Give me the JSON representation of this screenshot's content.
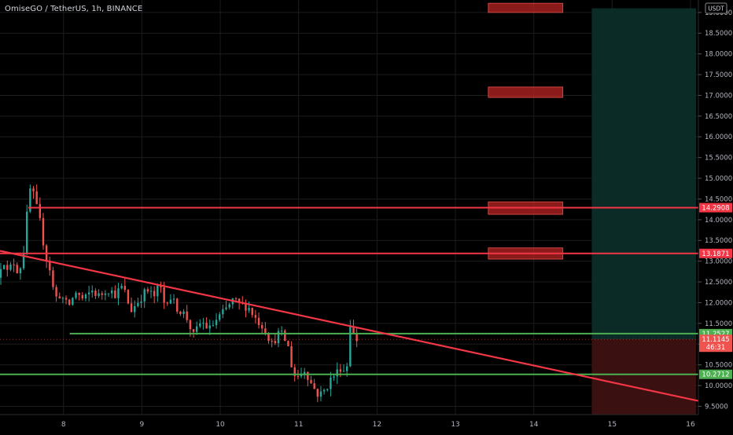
{
  "header": {
    "symbol_title": "OmiseGO / TetherUS, 1h, BINANCE"
  },
  "axis": {
    "currency_badge": "USDT"
  },
  "chart_data": {
    "type": "candlestick",
    "title": "OmiseGO / TetherUS, 1h, BINANCE",
    "x_unit": "day",
    "xlim": [
      7.19,
      16.1
    ],
    "ylim": [
      9.3,
      19.3
    ],
    "x_tick_labels": [
      "8",
      "9",
      "10",
      "11",
      "12",
      "13",
      "14",
      "15",
      "16"
    ],
    "x_ticks": [
      8,
      9,
      10,
      11,
      12,
      13,
      14,
      15,
      16
    ],
    "y_ticks": [
      9.5,
      10,
      10.5,
      11,
      11.5,
      12,
      12.5,
      13,
      13.5,
      14,
      14.5,
      15,
      15.5,
      16,
      16.5,
      17,
      17.5,
      18,
      18.5,
      19
    ],
    "y_tick_labels": [
      "9.5000",
      "10.0000",
      "10.5000",
      "11.0000",
      "11.5000",
      "12.0000",
      "12.5000",
      "13.0000",
      "13.5000",
      "14.0000",
      "14.5000",
      "15.0000",
      "15.5000",
      "16.0000",
      "16.5000",
      "17.0000",
      "17.5000",
      "18.0000",
      "18.5000",
      "19.0000"
    ],
    "colors": {
      "up": "#26a69a",
      "down": "#ef5350",
      "resistance": "#f23645",
      "support": "#4caf50",
      "trend": "#f23645",
      "zone": "#b22222",
      "grid": "#1c1c1c",
      "axis_text": "#b2b5be",
      "reward": "#0b2b27",
      "risk": "#3a1010"
    },
    "price_path": [
      [
        7.2,
        12.6
      ],
      [
        7.27,
        13.1
      ],
      [
        7.33,
        12.7
      ],
      [
        7.4,
        13.0
      ],
      [
        7.47,
        12.7
      ],
      [
        7.53,
        13.2
      ],
      [
        7.6,
        14.6
      ],
      [
        7.64,
        14.9
      ],
      [
        7.67,
        14.4
      ],
      [
        7.72,
        14.2
      ],
      [
        7.78,
        13.5
      ],
      [
        7.82,
        13.1
      ],
      [
        7.87,
        12.8
      ],
      [
        7.93,
        12.1
      ],
      [
        8.0,
        12.2
      ],
      [
        8.1,
        11.9
      ],
      [
        8.2,
        12.25
      ],
      [
        8.3,
        12.05
      ],
      [
        8.4,
        12.3
      ],
      [
        8.5,
        12.15
      ],
      [
        8.6,
        12.35
      ],
      [
        8.7,
        12.2
      ],
      [
        8.8,
        12.4
      ],
      [
        8.9,
        11.8
      ],
      [
        9.0,
        12.05
      ],
      [
        9.1,
        12.3
      ],
      [
        9.2,
        12.15
      ],
      [
        9.27,
        12.45
      ],
      [
        9.32,
        12.0
      ],
      [
        9.4,
        12.15
      ],
      [
        9.5,
        11.85
      ],
      [
        9.6,
        11.7
      ],
      [
        9.7,
        11.2
      ],
      [
        9.8,
        11.55
      ],
      [
        9.9,
        11.35
      ],
      [
        10.0,
        11.6
      ],
      [
        10.1,
        11.8
      ],
      [
        10.2,
        12.05
      ],
      [
        10.3,
        11.95
      ],
      [
        10.4,
        11.9
      ],
      [
        10.5,
        11.6
      ],
      [
        10.6,
        11.4
      ],
      [
        10.7,
        11.0
      ],
      [
        10.8,
        11.3
      ],
      [
        10.9,
        11.0
      ],
      [
        10.95,
        10.5
      ],
      [
        11.0,
        10.2
      ],
      [
        11.05,
        10.25
      ],
      [
        11.12,
        10.4
      ],
      [
        11.2,
        10.05
      ],
      [
        11.3,
        9.75
      ],
      [
        11.38,
        9.9
      ],
      [
        11.45,
        10.15
      ],
      [
        11.52,
        10.3
      ],
      [
        11.58,
        10.45
      ],
      [
        11.65,
        10.3
      ],
      [
        11.7,
        11.5
      ],
      [
        11.73,
        11.3
      ],
      [
        11.76,
        11.11
      ]
    ],
    "horizontal_lines": [
      {
        "type": "resistance",
        "price": 14.2908,
        "x_from": 7.55,
        "x_to": 16.1,
        "label": "14.2908"
      },
      {
        "type": "resistance",
        "price": 13.1871,
        "x_from": 7.19,
        "x_to": 16.1,
        "label": "13.1871"
      },
      {
        "type": "support",
        "price": 11.2527,
        "x_from": 8.08,
        "x_to": 16.1,
        "label": "11.2527"
      },
      {
        "type": "support",
        "price": 10.2712,
        "x_from": 7.19,
        "x_to": 16.1,
        "label": "10.2712"
      }
    ],
    "trend_line": {
      "from": [
        7.19,
        13.25
      ],
      "to": [
        16.1,
        9.63
      ]
    },
    "target_zones": [
      {
        "x_from": 13.42,
        "x_to": 14.37,
        "y_from": 19.0,
        "y_to": 19.22
      },
      {
        "x_from": 13.42,
        "x_to": 14.37,
        "y_from": 16.95,
        "y_to": 17.2
      },
      {
        "x_from": 13.42,
        "x_to": 14.37,
        "y_from": 14.13,
        "y_to": 14.43
      },
      {
        "x_from": 13.42,
        "x_to": 14.37,
        "y_from": 13.05,
        "y_to": 13.32
      }
    ],
    "position": {
      "x_from": 14.74,
      "x_to": 16.07,
      "entry": 11.1145,
      "target": 19.1,
      "stop": 9.3
    },
    "current_price": {
      "value": 11.1145,
      "label": "11.1145",
      "countdown": "46:31"
    }
  }
}
